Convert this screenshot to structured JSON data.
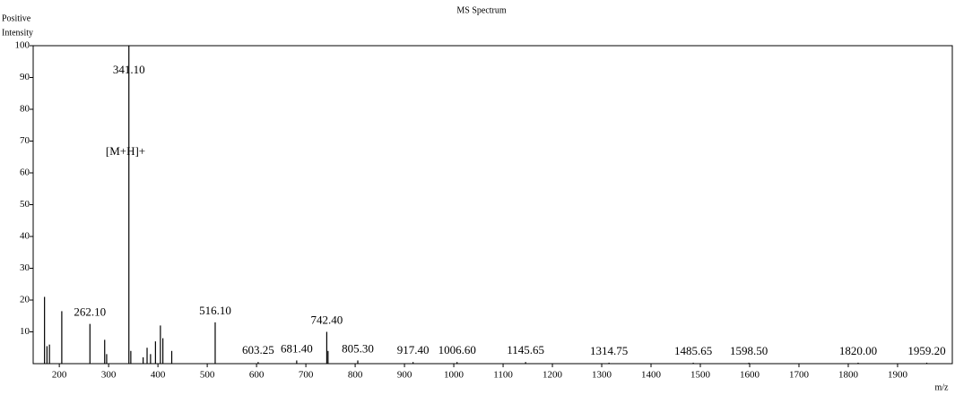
{
  "chart_data": {
    "type": "stick",
    "title": "MS Spectrum",
    "y_label_lines": [
      "Positive",
      "Intensity"
    ],
    "x_label": "m/z",
    "x": [
      170,
      175,
      180,
      205,
      262.1,
      292,
      296,
      341.1,
      345,
      370,
      378,
      385,
      395,
      405,
      410,
      428,
      516.1,
      603.25,
      681.4,
      742.4,
      745,
      805.3,
      917.4,
      1006.6,
      1145.65,
      1314.75,
      1485.65,
      1598.5,
      1820,
      1959.2
    ],
    "values": [
      21,
      5.5,
      6,
      16.5,
      12.5,
      7.5,
      3,
      100,
      4,
      2,
      5,
      3,
      7,
      12,
      8,
      4,
      13,
      0.5,
      1,
      10,
      4,
      1,
      0.5,
      0.5,
      0.5,
      0.3,
      0.3,
      0.3,
      0.3,
      0.3
    ],
    "color": "#000000",
    "peak_labels": [
      {
        "value": 341.1,
        "label": "341.10"
      },
      {
        "value": 262.1,
        "label": "262.10"
      },
      {
        "value": 516.1,
        "label": "516.10"
      },
      {
        "value": 603.25,
        "label": "603.25"
      },
      {
        "value": 681.4,
        "label": "681.40"
      },
      {
        "value": 742.4,
        "label": "742.40"
      },
      {
        "value": 805.3,
        "label": "805.30"
      },
      {
        "value": 917.4,
        "label": "917.40"
      },
      {
        "value": 1006.6,
        "label": "1006.60"
      },
      {
        "value": 1145.65,
        "label": "1145.65"
      },
      {
        "value": 1314.75,
        "label": "1314.75"
      },
      {
        "value": 1485.65,
        "label": "1485.65"
      },
      {
        "value": 1598.5,
        "label": "1598.50"
      },
      {
        "value": 1820,
        "label": "1820.00"
      },
      {
        "value": 1959.2,
        "label": "1959.20"
      }
    ],
    "annotation": "[M+H]+",
    "xlim": [
      147,
      2011
    ],
    "ylim": [
      0,
      100
    ],
    "xticks": [
      200,
      300,
      400,
      500,
      600,
      700,
      800,
      900,
      1000,
      1100,
      1200,
      1300,
      1400,
      1500,
      1600,
      1700,
      1800,
      1900
    ],
    "yticks": [
      10,
      20,
      30,
      40,
      50,
      60,
      70,
      80,
      90,
      100
    ]
  }
}
